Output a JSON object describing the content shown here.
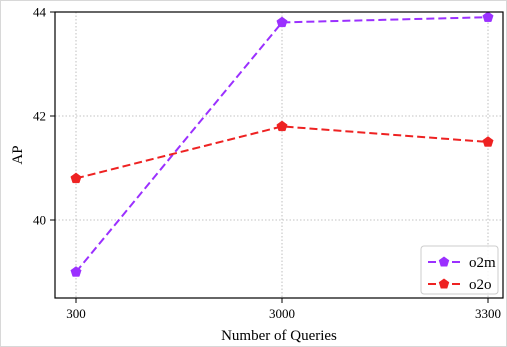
{
  "chart_data": {
    "type": "line",
    "title": "",
    "xlabel": "Number of Queries",
    "ylabel": "AP",
    "categories": [
      "300",
      "3000",
      "3300"
    ],
    "ylim": [
      38.5,
      44
    ],
    "yticks": [
      "40",
      "42",
      "44"
    ],
    "grid": true,
    "legend_position": "lower-right",
    "series": [
      {
        "name": "o2m",
        "values": [
          39.0,
          43.8,
          43.9
        ],
        "color": "#9b30ff",
        "line_style": "dashed",
        "marker": "pentagon"
      },
      {
        "name": "o2o",
        "values": [
          40.8,
          41.8,
          41.5
        ],
        "color": "#ee2222",
        "line_style": "dashed",
        "marker": "pentagon"
      }
    ]
  }
}
